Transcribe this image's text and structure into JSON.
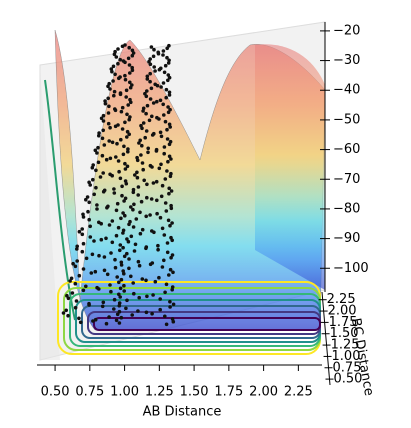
{
  "chart_data": {
    "type": "surface3d",
    "xlabel": "AB Distance",
    "ylabel": "BC Distance",
    "xlim": [
      0.37,
      2.42
    ],
    "xticks": [
      {
        "value": 0.5,
        "label": "0.50"
      },
      {
        "value": 0.75,
        "label": "0.75"
      },
      {
        "value": 1.0,
        "label": "1.00"
      },
      {
        "value": 1.25,
        "label": "1.25"
      },
      {
        "value": 1.5,
        "label": "1.50"
      },
      {
        "value": 1.75,
        "label": "1.75"
      },
      {
        "value": 2.0,
        "label": "2.00"
      },
      {
        "value": 2.25,
        "label": "2.25"
      }
    ],
    "ylim": [
      0.37,
      2.42
    ],
    "yticks": [
      {
        "value": 0.5,
        "label": "0.50"
      },
      {
        "value": 0.75,
        "label": "0.75"
      },
      {
        "value": 1.0,
        "label": "1.00"
      },
      {
        "value": 1.25,
        "label": "1.25"
      },
      {
        "value": 1.5,
        "label": "1.50"
      },
      {
        "value": 1.75,
        "label": "1.75"
      },
      {
        "value": 2.0,
        "label": "2.00"
      },
      {
        "value": 2.25,
        "label": "2.25"
      }
    ],
    "zlim": [
      -108,
      -17
    ],
    "zticks": [
      {
        "value": -20,
        "label": "−20"
      },
      {
        "value": -30,
        "label": "−30"
      },
      {
        "value": -40,
        "label": "−40"
      },
      {
        "value": -50,
        "label": "−50"
      },
      {
        "value": -60,
        "label": "−60"
      },
      {
        "value": -70,
        "label": "−70"
      },
      {
        "value": -80,
        "label": "−80"
      },
      {
        "value": -90,
        "label": "−90"
      },
      {
        "value": -100,
        "label": "−100"
      }
    ]
  }
}
